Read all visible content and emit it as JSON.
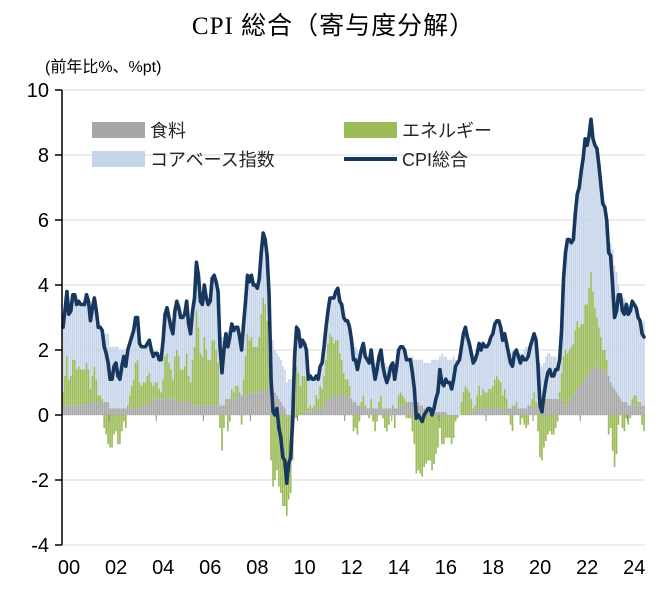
{
  "title": "CPI 総合（寄与度分解）",
  "axis_note": "(前年比%、%pt)",
  "colors": {
    "food": "#a6a6a6",
    "energy": "#9bbb59",
    "core": "#c6d5ea",
    "cpi_line": "#17375e",
    "grid": "#d9d9d9",
    "axis": "#000000",
    "zero_tick": "#8c8c8c"
  },
  "chart_data": {
    "type": "combo",
    "subtype": "stacked-bar-with-line",
    "x_start": "2000-01",
    "x_freq": "monthly",
    "x_ticklabels": [
      "00",
      "02",
      "04",
      "06",
      "08",
      "10",
      "12",
      "14",
      "16",
      "18",
      "20",
      "22",
      "24"
    ],
    "yticks": [
      10,
      8,
      6,
      4,
      2,
      0,
      -2,
      -4
    ],
    "ylim": [
      -4,
      10
    ],
    "grid": true,
    "legend_position": "top-left-inside",
    "bar_series": [
      {
        "name": "食料",
        "color": "#a6a6a6",
        "values": [
          0.3,
          0.3,
          0.3,
          0.3,
          0.3,
          0.3,
          0.3,
          0.3,
          0.3,
          0.3,
          0.3,
          0.3,
          0.4,
          0.4,
          0.4,
          0.4,
          0.4,
          0.4,
          0.4,
          0.4,
          0.4,
          0.4,
          0.4,
          0.4,
          0.2,
          0.2,
          0.2,
          0.2,
          0.2,
          0.2,
          0.2,
          0.2,
          0.2,
          0.2,
          0.2,
          0.2,
          0.2,
          0.2,
          0.2,
          0.2,
          0.3,
          0.3,
          0.3,
          0.3,
          0.4,
          0.4,
          0.5,
          0.5,
          0.5,
          0.5,
          0.5,
          0.5,
          0.6,
          0.5,
          0.5,
          0.5,
          0.5,
          0.5,
          0.5,
          0.4,
          0.4,
          0.4,
          0.4,
          0.5,
          0.4,
          0.4,
          0.3,
          0.3,
          0.3,
          0.3,
          0.3,
          0.3,
          0.3,
          0.3,
          0.3,
          0.3,
          0.3,
          0.3,
          0.3,
          0.3,
          0.3,
          0.3,
          0.3,
          0.3,
          0.5,
          0.5,
          0.5,
          0.5,
          0.5,
          0.6,
          0.6,
          0.6,
          0.6,
          0.6,
          0.6,
          0.6,
          0.7,
          0.7,
          0.7,
          0.7,
          0.7,
          0.7,
          0.8,
          0.8,
          0.8,
          0.9,
          0.8,
          0.8,
          0.7,
          0.6,
          0.5,
          0.4,
          0.3,
          0.2,
          0.0,
          0.0,
          -0.1,
          -0.1,
          -0.1,
          -0.1,
          0.0,
          0.0,
          0.0,
          0.1,
          0.1,
          0.1,
          0.1,
          0.1,
          0.2,
          0.2,
          0.2,
          0.2,
          0.2,
          0.3,
          0.4,
          0.5,
          0.5,
          0.5,
          0.6,
          0.6,
          0.6,
          0.6,
          0.6,
          0.6,
          0.6,
          0.6,
          0.5,
          0.5,
          0.4,
          0.4,
          0.3,
          0.3,
          0.3,
          0.2,
          0.2,
          0.2,
          0.2,
          0.2,
          0.2,
          0.2,
          0.2,
          0.2,
          0.2,
          0.2,
          0.2,
          0.2,
          0.2,
          0.2,
          0.2,
          0.2,
          0.2,
          0.3,
          0.3,
          0.3,
          0.3,
          0.4,
          0.4,
          0.4,
          0.4,
          0.4,
          0.4,
          0.4,
          0.3,
          0.3,
          0.2,
          0.2,
          0.2,
          0.2,
          0.2,
          0.2,
          0.1,
          0.1,
          0.1,
          0.1,
          0.1,
          0.1,
          0.0,
          0.0,
          0.0,
          0.0,
          0.0,
          0.0,
          0.0,
          0.0,
          0.0,
          0.0,
          0.0,
          0.1,
          0.1,
          0.1,
          0.1,
          0.2,
          0.2,
          0.2,
          0.2,
          0.2,
          0.2,
          0.2,
          0.2,
          0.2,
          0.2,
          0.2,
          0.2,
          0.2,
          0.2,
          0.2,
          0.2,
          0.2,
          0.2,
          0.3,
          0.3,
          0.2,
          0.2,
          0.2,
          0.2,
          0.2,
          0.2,
          0.3,
          0.3,
          0.3,
          0.2,
          0.2,
          0.3,
          0.5,
          0.5,
          0.6,
          0.5,
          0.5,
          0.5,
          0.5,
          0.5,
          0.5,
          0.5,
          0.5,
          0.5,
          0.3,
          0.3,
          0.3,
          0.5,
          0.5,
          0.6,
          0.7,
          0.8,
          0.9,
          0.9,
          1.0,
          1.1,
          1.2,
          1.3,
          1.4,
          1.4,
          1.5,
          1.5,
          1.4,
          1.4,
          1.4,
          1.4,
          1.3,
          1.2,
          1.0,
          0.9,
          0.8,
          0.7,
          0.6,
          0.5,
          0.4,
          0.4,
          0.4,
          0.3,
          0.3,
          0.3,
          0.3,
          0.3,
          0.3,
          0.3,
          0.3,
          0.3
        ]
      },
      {
        "name": "エネルギー",
        "color": "#9bbb59",
        "values": [
          0.4,
          0.9,
          1.5,
          0.8,
          0.9,
          1.4,
          1.4,
          1.1,
          1.2,
          1.1,
          1.1,
          1.1,
          1.2,
          1.0,
          0.4,
          0.8,
          1.1,
          0.7,
          0.2,
          0.2,
          0.1,
          -0.4,
          -0.6,
          -0.9,
          -1.0,
          -1.0,
          -0.6,
          -0.5,
          -0.9,
          -0.9,
          -0.5,
          -0.2,
          -0.4,
          0.1,
          0.4,
          0.7,
          0.9,
          1.4,
          1.5,
          0.8,
          0.6,
          0.7,
          0.7,
          0.9,
          0.9,
          0.6,
          0.4,
          0.5,
          0.5,
          0.3,
          0.2,
          0.6,
          1.2,
          1.4,
          1.1,
          0.9,
          0.6,
          1.3,
          1.5,
          1.4,
          1.0,
          1.0,
          1.1,
          1.4,
          0.8,
          0.6,
          1.4,
          1.8,
          2.9,
          2.4,
          1.6,
          1.5,
          2.1,
          1.7,
          1.4,
          1.4,
          2.0,
          2.0,
          1.7,
          1.3,
          -0.4,
          -1.1,
          -0.4,
          0.2,
          -0.5,
          -0.2,
          0.3,
          0.2,
          0.4,
          0.3,
          0.1,
          -0.3,
          0.5,
          1.2,
          1.9,
          1.7,
          1.7,
          1.4,
          1.4,
          1.4,
          1.7,
          2.4,
          2.8,
          2.6,
          2.1,
          0.9,
          -1.4,
          -2.2,
          -2.0,
          -1.7,
          -2.2,
          -2.4,
          -2.8,
          -2.8,
          -3.1,
          -2.6,
          -2.3,
          -1.3,
          0.6,
          1.5,
          1.3,
          0.9,
          1.2,
          1.1,
          1.0,
          0.1,
          0.2,
          0.1,
          0.1,
          0.4,
          0.3,
          0.7,
          0.6,
          0.9,
          1.3,
          1.7,
          2.0,
          1.9,
          1.6,
          1.7,
          1.7,
          1.3,
          1.1,
          0.7,
          0.5,
          0.5,
          0.4,
          0.0,
          -0.5,
          -0.4,
          -0.6,
          -0.2,
          0.1,
          0.4,
          0.1,
          0.0,
          -0.1,
          0.3,
          -0.2,
          -0.5,
          -0.2,
          0.2,
          0.4,
          -0.1,
          -0.4,
          -0.5,
          -0.3,
          0.0,
          0.1,
          -0.4,
          0.0,
          0.3,
          0.4,
          0.3,
          0.2,
          -0.1,
          -0.1,
          -0.1,
          -0.5,
          -0.9,
          -1.8,
          -1.7,
          -1.8,
          -1.9,
          -1.6,
          -1.5,
          -1.4,
          -1.4,
          -1.7,
          -1.5,
          -1.2,
          -1.0,
          -0.4,
          -0.9,
          -0.9,
          -0.7,
          -0.7,
          -0.7,
          -0.9,
          -0.7,
          -0.2,
          -0.1,
          0.0,
          0.4,
          0.7,
          0.9,
          0.8,
          0.6,
          0.4,
          0.1,
          0.2,
          0.4,
          0.7,
          0.4,
          0.6,
          0.5,
          0.5,
          0.6,
          0.6,
          0.7,
          0.9,
          1.0,
          0.9,
          0.8,
          0.4,
          0.6,
          0.3,
          0.0,
          -0.3,
          -0.5,
          0.0,
          0.2,
          0.0,
          -0.3,
          -0.1,
          -0.3,
          -0.4,
          -0.3,
          0.0,
          0.2,
          0.5,
          0.2,
          -0.5,
          -1.3,
          -1.4,
          -1.0,
          -0.8,
          -0.6,
          -0.5,
          -0.6,
          -0.6,
          -0.4,
          -0.2,
          0.2,
          0.8,
          1.5,
          1.7,
          1.6,
          1.5,
          1.6,
          1.6,
          1.9,
          2.1,
          1.8,
          1.9,
          1.8,
          2.3,
          2.2,
          2.6,
          3.0,
          2.4,
          1.8,
          1.5,
          1.3,
          1.0,
          0.6,
          0.6,
          0.4,
          -0.6,
          -0.4,
          -1.1,
          -1.6,
          -1.2,
          -0.3,
          0.0,
          -0.4,
          -0.5,
          -0.1,
          -0.3,
          -0.1,
          0.2,
          0.3,
          0.3,
          0.1,
          0.1,
          -0.3,
          -0.5
        ]
      },
      {
        "name": "コアベース指数",
        "color": "#c6d5ea",
        "values": [
          2.0,
          2.0,
          2.0,
          2.0,
          2.0,
          2.0,
          2.0,
          2.0,
          2.0,
          2.0,
          2.0,
          2.0,
          2.1,
          2.1,
          2.1,
          2.1,
          2.1,
          2.1,
          2.1,
          2.1,
          2.1,
          2.1,
          2.1,
          2.1,
          1.9,
          1.9,
          1.9,
          1.9,
          1.9,
          1.8,
          1.8,
          1.8,
          1.7,
          1.7,
          1.6,
          1.5,
          1.5,
          1.4,
          1.3,
          1.2,
          1.2,
          1.1,
          1.1,
          1.0,
          1.0,
          1.0,
          0.9,
          0.9,
          0.9,
          0.9,
          1.0,
          1.2,
          1.3,
          1.4,
          1.4,
          1.3,
          1.4,
          1.4,
          1.5,
          1.5,
          1.6,
          1.6,
          1.6,
          1.6,
          1.6,
          1.5,
          1.5,
          1.5,
          1.5,
          1.6,
          1.6,
          1.6,
          1.6,
          1.6,
          1.7,
          1.8,
          1.9,
          2.0,
          2.1,
          2.2,
          2.2,
          2.1,
          2.1,
          2.0,
          2.1,
          2.1,
          2.0,
          1.9,
          1.8,
          1.8,
          1.7,
          1.7,
          1.7,
          1.7,
          1.8,
          1.8,
          1.9,
          1.9,
          1.9,
          1.8,
          1.8,
          1.9,
          2.0,
          2.0,
          2.0,
          1.9,
          1.7,
          1.5,
          1.3,
          1.3,
          1.3,
          1.3,
          1.2,
          1.2,
          1.0,
          1.1,
          1.1,
          1.2,
          1.3,
          1.3,
          1.3,
          1.2,
          1.1,
          1.0,
          0.9,
          0.9,
          0.9,
          0.9,
          0.8,
          0.6,
          0.6,
          0.6,
          0.8,
          0.9,
          1.0,
          1.0,
          1.1,
          1.2,
          1.4,
          1.5,
          1.6,
          1.6,
          1.7,
          1.7,
          1.8,
          1.8,
          1.8,
          1.8,
          1.8,
          1.7,
          1.7,
          1.6,
          1.6,
          1.6,
          1.5,
          1.5,
          1.5,
          1.5,
          1.5,
          1.4,
          1.4,
          1.4,
          1.4,
          1.4,
          1.4,
          1.3,
          1.3,
          1.3,
          1.3,
          1.3,
          1.3,
          1.4,
          1.4,
          1.5,
          1.5,
          1.4,
          1.4,
          1.4,
          1.4,
          1.3,
          1.3,
          1.3,
          1.4,
          1.4,
          1.4,
          1.4,
          1.4,
          1.4,
          1.5,
          1.5,
          1.6,
          1.6,
          1.7,
          1.8,
          1.7,
          1.7,
          1.7,
          1.7,
          1.7,
          1.8,
          1.7,
          1.7,
          1.7,
          1.7,
          1.8,
          1.8,
          1.6,
          1.5,
          1.4,
          1.4,
          1.4,
          1.3,
          1.3,
          1.4,
          1.4,
          1.4,
          1.4,
          1.4,
          1.6,
          1.6,
          1.7,
          1.7,
          1.8,
          1.7,
          1.7,
          1.7,
          1.7,
          1.7,
          1.7,
          1.7,
          1.6,
          1.6,
          1.6,
          1.7,
          1.7,
          1.8,
          1.9,
          1.8,
          1.8,
          1.8,
          1.8,
          1.9,
          1.7,
          1.1,
          1.0,
          1.0,
          1.3,
          1.4,
          1.4,
          1.3,
          1.3,
          1.3,
          1.1,
          1.0,
          1.3,
          2.4,
          3.0,
          3.5,
          3.4,
          3.2,
          3.2,
          3.6,
          3.9,
          4.3,
          4.7,
          5.1,
          5.1,
          4.9,
          4.7,
          4.7,
          4.7,
          5.0,
          5.2,
          5.0,
          4.7,
          4.5,
          4.4,
          4.3,
          4.4,
          4.3,
          4.2,
          3.8,
          3.7,
          3.4,
          3.2,
          3.2,
          3.2,
          3.1,
          3.1,
          3.0,
          3.0,
          2.8,
          2.7,
          2.6,
          2.5,
          2.5,
          2.6
        ]
      }
    ],
    "line_series": {
      "name": "CPI総合",
      "color": "#17375e",
      "values": [
        2.7,
        3.2,
        3.8,
        3.1,
        3.2,
        3.7,
        3.7,
        3.4,
        3.5,
        3.4,
        3.4,
        3.4,
        3.7,
        3.5,
        2.9,
        3.3,
        3.6,
        3.2,
        2.7,
        2.7,
        2.6,
        2.1,
        1.9,
        1.6,
        1.1,
        1.1,
        1.5,
        1.6,
        1.2,
        1.1,
        1.5,
        1.8,
        1.5,
        2.0,
        2.2,
        2.4,
        2.6,
        3.0,
        3.0,
        2.2,
        2.1,
        2.1,
        2.1,
        2.2,
        2.3,
        2.0,
        1.8,
        1.9,
        1.9,
        1.7,
        1.7,
        2.3,
        3.1,
        3.3,
        3.0,
        2.7,
        2.5,
        3.2,
        3.5,
        3.3,
        3.0,
        3.0,
        3.1,
        3.5,
        2.8,
        2.5,
        3.2,
        3.6,
        4.7,
        4.3,
        3.5,
        3.4,
        4.0,
        3.6,
        3.4,
        3.5,
        4.2,
        4.3,
        4.1,
        3.8,
        2.1,
        1.3,
        2.0,
        2.5,
        2.1,
        2.4,
        2.8,
        2.6,
        2.7,
        2.7,
        2.4,
        2.0,
        2.8,
        3.5,
        4.3,
        4.1,
        4.3,
        4.0,
        4.0,
        3.9,
        4.2,
        5.0,
        5.6,
        5.4,
        4.9,
        3.7,
        1.1,
        0.1,
        0.0,
        0.2,
        -0.4,
        -0.7,
        -1.3,
        -1.4,
        -2.1,
        -1.5,
        -1.3,
        -0.2,
        1.8,
        2.7,
        2.6,
        2.1,
        2.3,
        2.2,
        2.0,
        1.1,
        1.2,
        1.1,
        1.1,
        1.2,
        1.1,
        1.5,
        1.6,
        2.1,
        2.7,
        3.2,
        3.6,
        3.6,
        3.6,
        3.8,
        3.9,
        3.5,
        3.4,
        3.0,
        2.9,
        2.9,
        2.7,
        2.3,
        1.7,
        1.7,
        1.4,
        1.7,
        2.0,
        2.2,
        1.8,
        1.7,
        1.6,
        2.0,
        1.5,
        1.1,
        1.4,
        1.8,
        2.0,
        1.5,
        1.2,
        1.0,
        1.2,
        1.5,
        1.6,
        1.1,
        1.5,
        2.0,
        2.1,
        2.1,
        2.0,
        1.7,
        1.7,
        1.7,
        1.3,
        0.8,
        -0.1,
        0.0,
        -0.1,
        -0.2,
        0.0,
        0.1,
        0.2,
        0.2,
        0.0,
        0.2,
        0.5,
        0.7,
        1.4,
        1.0,
        0.9,
        1.1,
        1.0,
        1.0,
        0.8,
        1.1,
        1.5,
        1.6,
        1.7,
        2.1,
        2.5,
        2.7,
        2.4,
        2.2,
        1.9,
        1.6,
        1.7,
        1.9,
        2.2,
        2.0,
        2.2,
        2.1,
        2.1,
        2.2,
        2.4,
        2.5,
        2.8,
        2.9,
        2.9,
        2.7,
        2.3,
        2.5,
        2.2,
        1.9,
        1.6,
        1.5,
        1.9,
        2.0,
        1.8,
        1.6,
        1.8,
        1.7,
        1.7,
        1.8,
        2.1,
        2.3,
        2.5,
        2.3,
        1.5,
        0.3,
        0.1,
        0.6,
        1.0,
        1.3,
        1.4,
        1.2,
        1.2,
        1.4,
        1.4,
        1.7,
        2.6,
        4.2,
        5.0,
        5.4,
        5.4,
        5.3,
        5.4,
        6.2,
        6.8,
        7.0,
        7.5,
        7.9,
        8.5,
        8.3,
        8.6,
        9.1,
        8.5,
        8.3,
        8.2,
        7.7,
        7.1,
        6.5,
        6.4,
        6.0,
        5.0,
        4.9,
        4.0,
        3.0,
        3.2,
        3.7,
        3.7,
        3.2,
        3.1,
        3.4,
        3.1,
        3.2,
        3.5,
        3.4,
        3.3,
        3.0,
        2.9,
        2.5,
        2.4
      ]
    }
  }
}
